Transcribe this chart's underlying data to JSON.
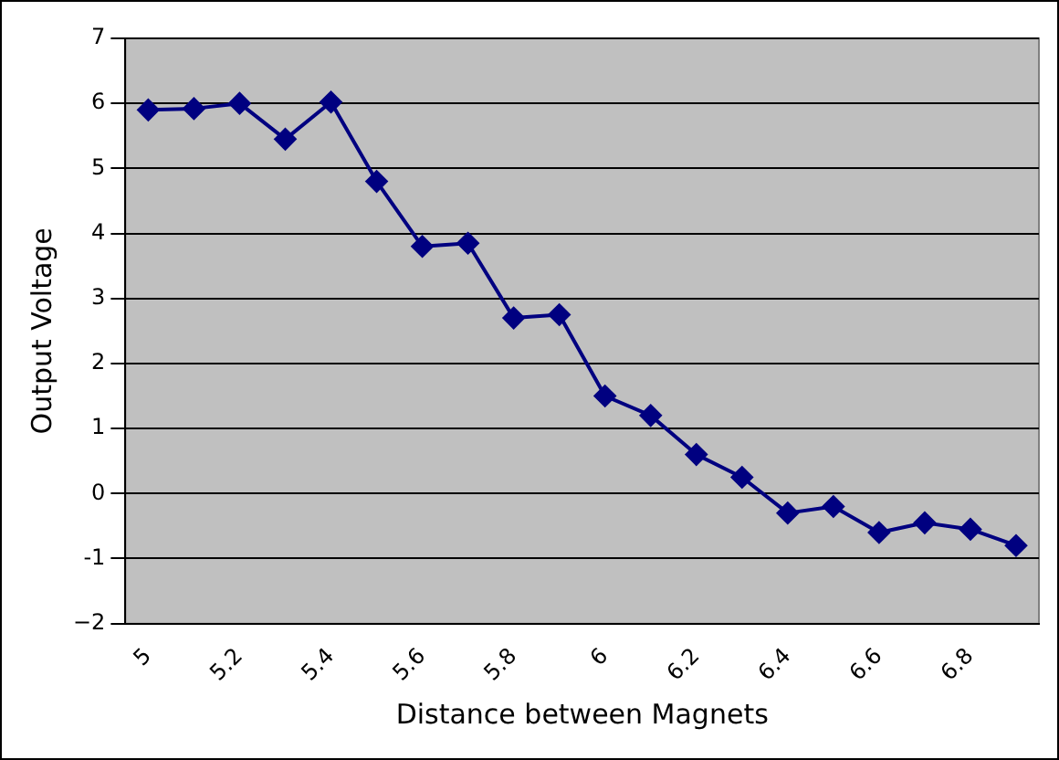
{
  "chart_data": {
    "type": "line",
    "xlabel": "Distance between Magnets",
    "ylabel": "Output Voltage",
    "categories": [
      "5",
      null,
      "5.2",
      null,
      "5.4",
      null,
      "5.6",
      null,
      "5.8",
      null,
      "6",
      null,
      "6.2",
      null,
      "6.4",
      null,
      "6.6",
      null,
      "6.8",
      null
    ],
    "series": [
      {
        "color": "#000080",
        "values": [
          5.9,
          5.92,
          6.0,
          5.45,
          6.02,
          4.8,
          3.8,
          3.85,
          2.7,
          2.75,
          1.5,
          1.2,
          0.6,
          0.25,
          -0.3,
          -0.2,
          -0.6,
          -0.45,
          -0.55,
          -0.8
        ]
      }
    ],
    "ylim": [
      -2,
      7
    ],
    "yticks": [
      {
        "value": -2,
        "label": "−2"
      },
      -1,
      0,
      1,
      2,
      3,
      4,
      5,
      6,
      7
    ],
    "grid": "y",
    "marker": "diamond",
    "line_style": "solid"
  }
}
